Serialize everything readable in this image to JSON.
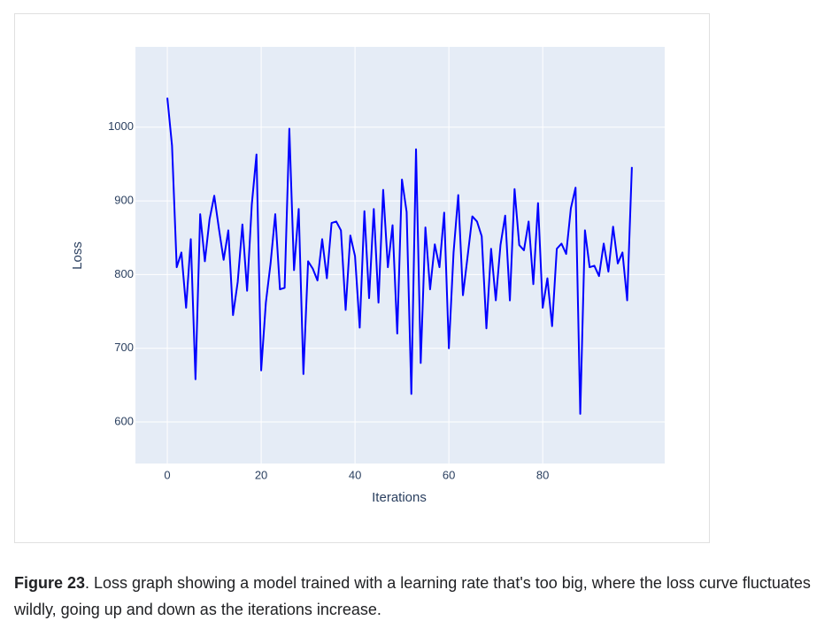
{
  "chart_data": {
    "type": "line",
    "x_label": "Iterations",
    "y_label": "Loss",
    "x": [
      0,
      1,
      2,
      3,
      4,
      5,
      6,
      7,
      8,
      9,
      10,
      11,
      12,
      13,
      14,
      15,
      16,
      17,
      18,
      19,
      20,
      21,
      22,
      23,
      24,
      25,
      26,
      27,
      28,
      29,
      30,
      31,
      32,
      33,
      34,
      35,
      36,
      37,
      38,
      39,
      40,
      41,
      42,
      43,
      44,
      45,
      46,
      47,
      48,
      49,
      50,
      51,
      52,
      53,
      54,
      55,
      56,
      57,
      58,
      59,
      60,
      61,
      62,
      63,
      64,
      65,
      66,
      67,
      68,
      69,
      70,
      71,
      72,
      73,
      74,
      75,
      76,
      77,
      78,
      79,
      80,
      81,
      82,
      83,
      84,
      85,
      86,
      87,
      88,
      89,
      90,
      91,
      92,
      93,
      94,
      95,
      96,
      97,
      98,
      99
    ],
    "series": [
      {
        "name": "Loss",
        "color": "#0000ff",
        "values": [
          1040,
          975,
          810,
          830,
          755,
          848,
          658,
          882,
          818,
          875,
          907,
          862,
          820,
          860,
          745,
          790,
          868,
          778,
          895,
          963,
          670,
          762,
          815,
          882,
          780,
          782,
          998,
          806,
          889,
          665,
          818,
          808,
          792,
          848,
          795,
          870,
          872,
          860,
          752,
          853,
          825,
          728,
          886,
          768,
          889,
          762,
          915,
          810,
          867,
          720,
          929,
          885,
          638,
          970,
          680,
          864,
          780,
          841,
          810,
          884,
          700,
          830,
          908,
          772,
          825,
          879,
          872,
          852,
          727,
          835,
          765,
          840,
          880,
          765,
          916,
          840,
          833,
          872,
          787,
          897,
          755,
          795,
          730,
          835,
          842,
          828,
          890,
          918,
          611,
          860,
          810,
          812,
          798,
          842,
          804,
          865,
          815,
          830,
          765,
          946
        ]
      }
    ],
    "xlim": [
      -6.8,
      106
    ],
    "xticks": [
      0,
      20,
      40,
      60,
      80
    ],
    "ylim": [
      543.6,
      1109
    ],
    "yticks": [
      600,
      700,
      800,
      900,
      1000
    ],
    "grid": true,
    "background": "#e5ecf6"
  },
  "caption": {
    "label": "Figure 23",
    "text": ". Loss graph showing a model trained with a learning rate that's too big, where the loss curve fluctuates wildly, going up and down as the iterations increase."
  }
}
